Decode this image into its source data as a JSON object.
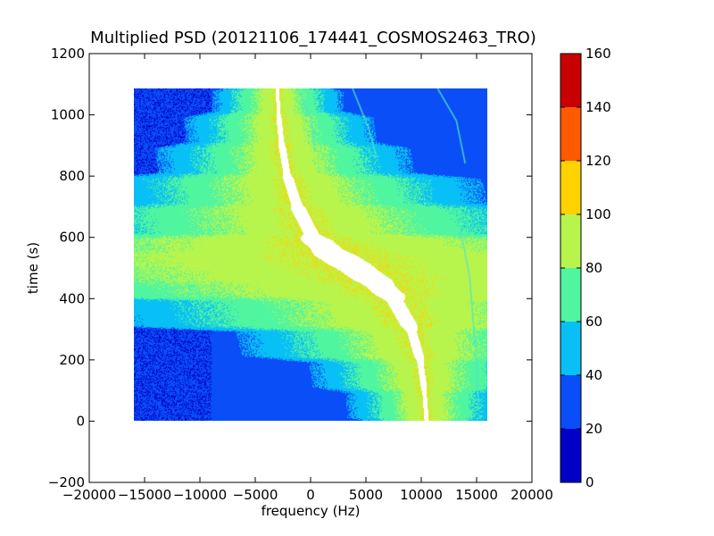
{
  "chart_data": {
    "type": "heatmap",
    "title": "Multiplied PSD (20121106_174441_COSMOS2463_TRO)",
    "xlabel": "frequency (Hz)",
    "ylabel": "time (s)",
    "xlim": [
      -20000,
      20000
    ],
    "ylim": [
      -200,
      1200
    ],
    "x_ticks": [
      -20000,
      -15000,
      -10000,
      -5000,
      0,
      5000,
      10000,
      15000,
      20000
    ],
    "x_tick_labels": [
      "−20000",
      "−15000",
      "−10000",
      "−5000",
      "0",
      "5000",
      "10000",
      "15000",
      "20000"
    ],
    "y_ticks": [
      -200,
      0,
      200,
      400,
      600,
      800,
      1000,
      1200
    ],
    "y_tick_labels": [
      "−200",
      "0",
      "200",
      "400",
      "600",
      "800",
      "1000",
      "1200"
    ],
    "data_extent": {
      "freq_min": -16000,
      "freq_max": 16000,
      "time_min": 0,
      "time_max": 1085
    },
    "colorbar": {
      "levels": [
        0,
        20,
        40,
        60,
        80,
        100,
        120,
        140,
        160
      ],
      "tick_labels": [
        "0",
        "20",
        "40",
        "60",
        "80",
        "100",
        "120",
        "140",
        "160"
      ],
      "colors": [
        "#0000c8",
        "#0a4ef7",
        "#08c0f5",
        "#50f5a0",
        "#b8f54c",
        "#ffd200",
        "#ff5a00",
        "#c80000"
      ]
    },
    "background_level_range": [
      20,
      40
    ],
    "signal_track": {
      "description_points_time_s": [
        0,
        100,
        200,
        300,
        400,
        450,
        500,
        550,
        600,
        700,
        800,
        900,
        1000,
        1085
      ],
      "center_freq_hz": [
        10500,
        10300,
        9900,
        9100,
        7500,
        6000,
        4000,
        1800,
        200,
        -1200,
        -2100,
        -2600,
        -2900,
        -3000
      ],
      "peak_level": 100
    },
    "grid": false,
    "legend": "none"
  }
}
